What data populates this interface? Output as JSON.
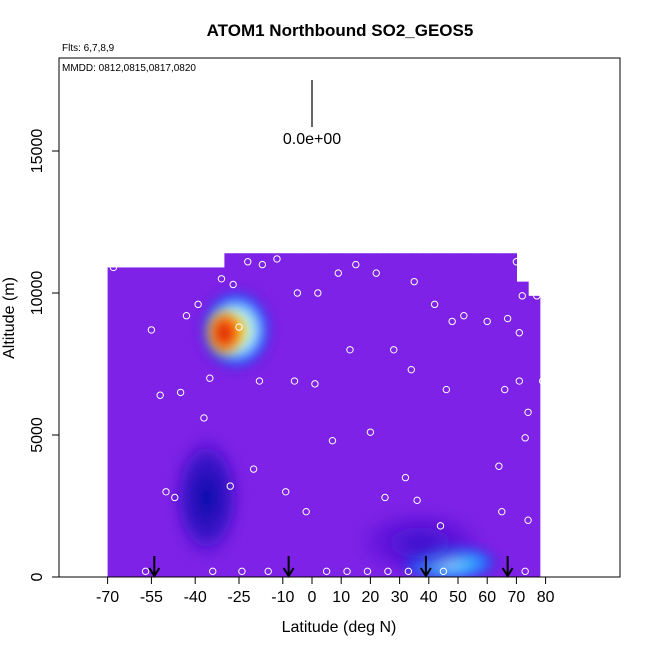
{
  "chart_data": {
    "type": "heatmap",
    "title": "ATOM1 Northbound SO2_GEOS5",
    "flights_note": "Flts: 6,7,8,9",
    "dates_note": "MMDD: 0812,0815,0817,0820",
    "xlabel": "Latitude (deg N)",
    "ylabel": "Altitude (m)",
    "xlim": [
      -70,
      85
    ],
    "ylim": [
      0,
      18000
    ],
    "x_ticks": [
      -70,
      -55,
      -40,
      -25,
      -10,
      0,
      10,
      20,
      30,
      40,
      50,
      60,
      70,
      80
    ],
    "x_tick_labels": [
      "-70",
      "-55",
      "-40",
      "-25",
      "-10",
      "0",
      "10",
      "20",
      "30",
      "40",
      "50",
      "60",
      "70",
      "80"
    ],
    "y_ticks": [
      0,
      5000,
      10000,
      15000
    ],
    "y_tick_labels": [
      "0",
      "5000",
      "10000",
      "15000"
    ],
    "legend_value_label": "0.0e+00",
    "colors": {
      "background_field": "#7d22e6",
      "low": "#3c0ccd",
      "lowest": "#0a0aa8",
      "mid": "#1e64ff",
      "high": "#aaf0ff",
      "peak": "#ffd200",
      "max": "#d20000"
    },
    "arrow_latitudes": [
      -54,
      -8,
      39,
      67
    ],
    "curtain_columns": [
      {
        "lat": -68,
        "top": 10900
      },
      {
        "lat": -64,
        "top": 10900
      },
      {
        "lat": -60,
        "top": 10900
      },
      {
        "lat": -56,
        "top": 10900
      },
      {
        "lat": -52,
        "top": 10900
      },
      {
        "lat": -48,
        "top": 10900
      },
      {
        "lat": -44,
        "top": 10900
      },
      {
        "lat": -40,
        "top": 10900
      },
      {
        "lat": -36,
        "top": 10900
      },
      {
        "lat": -32,
        "top": 10900
      },
      {
        "lat": -28,
        "top": 11400
      },
      {
        "lat": -24,
        "top": 11400
      },
      {
        "lat": -20,
        "top": 11400
      },
      {
        "lat": -16,
        "top": 11400
      },
      {
        "lat": -12,
        "top": 11400
      },
      {
        "lat": -8,
        "top": 11400
      },
      {
        "lat": -4,
        "top": 11400
      },
      {
        "lat": 0,
        "top": 11400
      },
      {
        "lat": 4,
        "top": 11400
      },
      {
        "lat": 8,
        "top": 11400
      },
      {
        "lat": 12,
        "top": 11400
      },
      {
        "lat": 16,
        "top": 11400
      },
      {
        "lat": 20,
        "top": 11400
      },
      {
        "lat": 24,
        "top": 11400
      },
      {
        "lat": 28,
        "top": 11400
      },
      {
        "lat": 32,
        "top": 11400
      },
      {
        "lat": 36,
        "top": 11400
      },
      {
        "lat": 40,
        "top": 11400
      },
      {
        "lat": 44,
        "top": 11400
      },
      {
        "lat": 48,
        "top": 11400
      },
      {
        "lat": 52,
        "top": 11400
      },
      {
        "lat": 56,
        "top": 11400
      },
      {
        "lat": 60,
        "top": 11400
      },
      {
        "lat": 64,
        "top": 11400
      },
      {
        "lat": 68,
        "top": 11400
      },
      {
        "lat": 72,
        "top": 10400
      },
      {
        "lat": 76,
        "top": 9900
      }
    ],
    "blobs": [
      {
        "lat": -26,
        "alt": 8700,
        "rx": 13,
        "ry": 1500,
        "level": "peak"
      },
      {
        "lat": -30,
        "alt": 8600,
        "rx": 7,
        "ry": 900,
        "level": "max"
      },
      {
        "lat": 47,
        "alt": 500,
        "rx": 17,
        "ry": 700,
        "level": "high"
      },
      {
        "lat": -36,
        "alt": 2800,
        "rx": 12,
        "ry": 2200,
        "level": "lowest"
      },
      {
        "lat": 37,
        "alt": 1200,
        "rx": 22,
        "ry": 1200,
        "level": "low"
      }
    ],
    "sample_points": [
      {
        "lat": -68,
        "alt": 10900
      },
      {
        "lat": -57,
        "alt": 200
      },
      {
        "lat": -55,
        "alt": 8700
      },
      {
        "lat": -52,
        "alt": 6400
      },
      {
        "lat": -50,
        "alt": 3000
      },
      {
        "lat": -47,
        "alt": 2800
      },
      {
        "lat": -45,
        "alt": 6500
      },
      {
        "lat": -43,
        "alt": 9200
      },
      {
        "lat": -39,
        "alt": 9600
      },
      {
        "lat": -37,
        "alt": 5600
      },
      {
        "lat": -35,
        "alt": 7000
      },
      {
        "lat": -34,
        "alt": 200
      },
      {
        "lat": -31,
        "alt": 10500
      },
      {
        "lat": -28,
        "alt": 3200
      },
      {
        "lat": -27,
        "alt": 10300
      },
      {
        "lat": -25,
        "alt": 8800
      },
      {
        "lat": -24,
        "alt": 200
      },
      {
        "lat": -22,
        "alt": 11100
      },
      {
        "lat": -20,
        "alt": 3800
      },
      {
        "lat": -18,
        "alt": 6900
      },
      {
        "lat": -17,
        "alt": 11000
      },
      {
        "lat": -15,
        "alt": 200
      },
      {
        "lat": -12,
        "alt": 11200
      },
      {
        "lat": -9,
        "alt": 3000
      },
      {
        "lat": -6,
        "alt": 6900
      },
      {
        "lat": -5,
        "alt": 10000
      },
      {
        "lat": -2,
        "alt": 2300
      },
      {
        "lat": 1,
        "alt": 6800
      },
      {
        "lat": 2,
        "alt": 10000
      },
      {
        "lat": 5,
        "alt": 200
      },
      {
        "lat": 7,
        "alt": 4800
      },
      {
        "lat": 9,
        "alt": 10700
      },
      {
        "lat": 12,
        "alt": 200
      },
      {
        "lat": 13,
        "alt": 8000
      },
      {
        "lat": 15,
        "alt": 11000
      },
      {
        "lat": 19,
        "alt": 200
      },
      {
        "lat": 20,
        "alt": 5100
      },
      {
        "lat": 22,
        "alt": 10700
      },
      {
        "lat": 25,
        "alt": 2800
      },
      {
        "lat": 26,
        "alt": 200
      },
      {
        "lat": 28,
        "alt": 8000
      },
      {
        "lat": 32,
        "alt": 3500
      },
      {
        "lat": 33,
        "alt": 200
      },
      {
        "lat": 34,
        "alt": 7300
      },
      {
        "lat": 35,
        "alt": 10400
      },
      {
        "lat": 36,
        "alt": 2700
      },
      {
        "lat": 42,
        "alt": 9600
      },
      {
        "lat": 44,
        "alt": 1800
      },
      {
        "lat": 45,
        "alt": 200
      },
      {
        "lat": 46,
        "alt": 6600
      },
      {
        "lat": 48,
        "alt": 9000
      },
      {
        "lat": 52,
        "alt": 9200
      },
      {
        "lat": 60,
        "alt": 9000
      },
      {
        "lat": 64,
        "alt": 3900
      },
      {
        "lat": 65,
        "alt": 2300
      },
      {
        "lat": 66,
        "alt": 6600
      },
      {
        "lat": 67,
        "alt": 9100
      },
      {
        "lat": 70,
        "alt": 11100
      },
      {
        "lat": 71,
        "alt": 6900
      },
      {
        "lat": 71,
        "alt": 8600
      },
      {
        "lat": 72,
        "alt": 9900
      },
      {
        "lat": 73,
        "alt": 4900
      },
      {
        "lat": 73,
        "alt": 200
      },
      {
        "lat": 74,
        "alt": 5800
      },
      {
        "lat": 74,
        "alt": 2000
      },
      {
        "lat": 77,
        "alt": 9900
      },
      {
        "lat": 79,
        "alt": 6900
      }
    ]
  }
}
